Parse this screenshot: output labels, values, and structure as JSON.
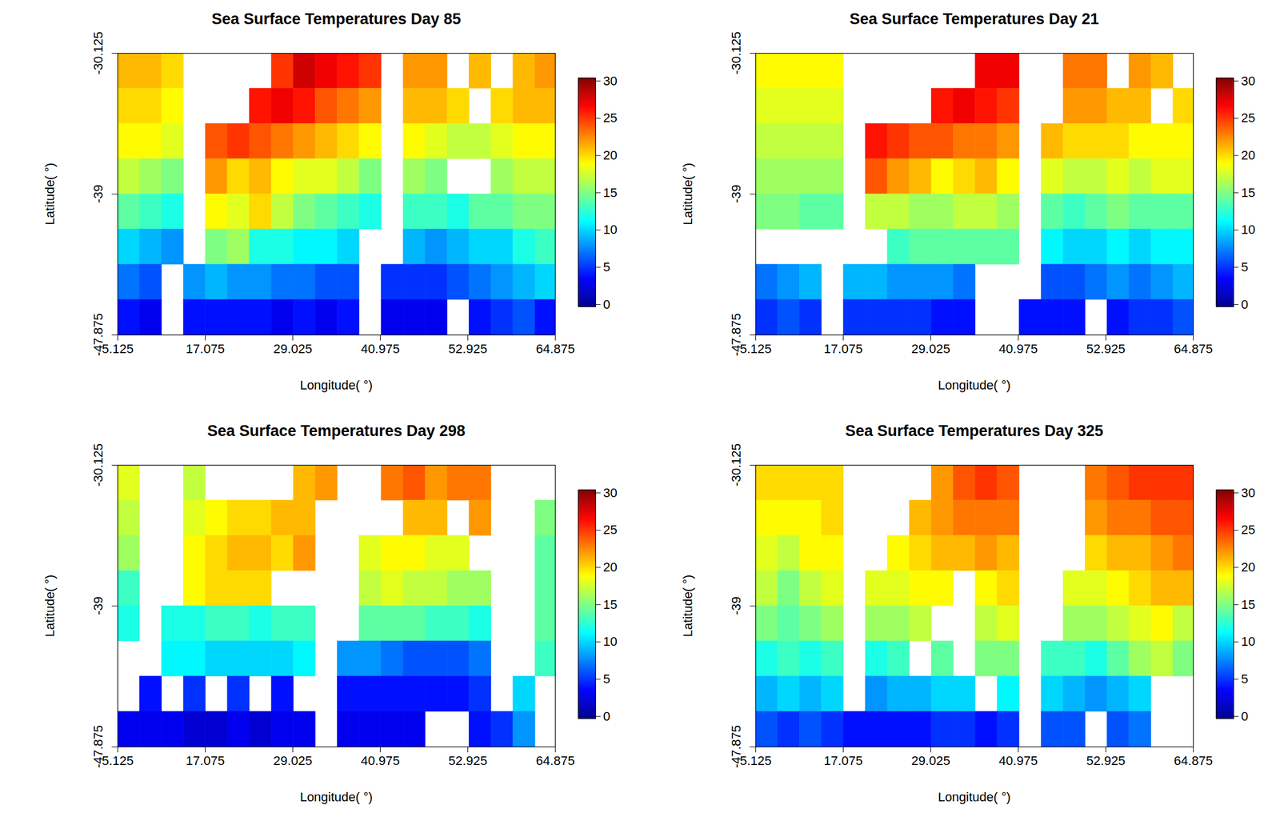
{
  "chart_data": [
    {
      "type": "heatmap",
      "title": "Sea Surface Temperatures Day 85",
      "x_label": "Longitude( °)",
      "y_label": "Latitude( °)",
      "xlim": [
        5.125,
        64.875
      ],
      "ylim": [
        -47.875,
        -30.125
      ],
      "xticks": [
        5.125,
        17.075,
        29.025,
        40.975,
        52.925,
        64.875
      ],
      "yticks": [
        -47.875,
        -39,
        -30.125
      ],
      "x": [
        6.625,
        9.625,
        12.625,
        15.625,
        18.625,
        21.625,
        24.625,
        27.625,
        30.625,
        33.625,
        36.625,
        39.625,
        42.625,
        45.625,
        48.625,
        51.625,
        54.625,
        57.625,
        60.625,
        63.625
      ],
      "y": [
        -31.234,
        -33.453,
        -35.672,
        -37.891,
        -40.109,
        -42.328,
        -44.547,
        -46.766
      ],
      "z": [
        [
          21,
          21,
          20,
          null,
          null,
          null,
          null,
          25,
          28,
          27,
          26,
          25,
          null,
          22,
          22,
          null,
          21,
          null,
          21,
          22
        ],
        [
          20,
          20,
          19,
          null,
          null,
          null,
          26,
          27,
          26,
          24,
          23,
          22,
          null,
          21,
          21,
          20,
          null,
          20,
          21,
          21
        ],
        [
          19,
          19,
          18,
          null,
          24,
          25,
          24,
          23,
          22,
          21,
          20,
          19,
          null,
          19,
          18,
          17,
          17,
          18,
          19,
          19
        ],
        [
          17,
          16,
          15,
          null,
          22,
          20,
          21,
          19,
          18,
          18,
          17,
          15,
          null,
          16,
          15,
          null,
          null,
          16,
          17,
          17
        ],
        [
          14,
          13,
          12,
          null,
          19,
          18,
          20,
          17,
          15,
          14,
          13,
          12,
          null,
          13,
          13,
          12,
          14,
          14,
          15,
          15
        ],
        [
          10,
          9,
          8,
          null,
          15,
          16,
          12,
          12,
          11,
          11,
          10,
          null,
          null,
          9,
          8,
          9,
          10,
          10,
          12,
          13
        ],
        [
          7,
          6,
          null,
          8,
          9,
          8,
          8,
          7,
          7,
          6,
          6,
          null,
          5,
          5,
          5,
          6,
          7,
          8,
          9,
          10
        ],
        [
          4,
          3,
          null,
          4,
          4,
          4,
          4,
          3,
          4,
          3,
          4,
          null,
          3,
          3,
          3,
          null,
          4,
          5,
          6,
          4
        ]
      ],
      "colorbar_range": [
        -0.3,
        30.4
      ],
      "colorbar_ticks": [
        0,
        5,
        10,
        15,
        20,
        25,
        30
      ]
    },
    {
      "type": "heatmap",
      "title": "Sea Surface Temperatures Day 21",
      "x_label": "Longitude( °)",
      "y_label": "Latitude( °)",
      "xlim": [
        5.125,
        64.875
      ],
      "ylim": [
        -47.875,
        -30.125
      ],
      "xticks": [
        5.125,
        17.075,
        29.025,
        40.975,
        52.925,
        64.875
      ],
      "yticks": [
        -47.875,
        -39,
        -30.125
      ],
      "x": [
        6.625,
        9.625,
        12.625,
        15.625,
        18.625,
        21.625,
        24.625,
        27.625,
        30.625,
        33.625,
        36.625,
        39.625,
        42.625,
        45.625,
        48.625,
        51.625,
        54.625,
        57.625,
        60.625,
        63.625
      ],
      "y": [
        -31.234,
        -33.453,
        -35.672,
        -37.891,
        -40.109,
        -42.328,
        -44.547,
        -46.766
      ],
      "z": [
        [
          19,
          19,
          19,
          19,
          null,
          null,
          null,
          null,
          null,
          null,
          27,
          27,
          null,
          null,
          23,
          23,
          null,
          22,
          21,
          null
        ],
        [
          18,
          18,
          18,
          18,
          null,
          null,
          null,
          null,
          26,
          27,
          26,
          25,
          null,
          null,
          22,
          22,
          21,
          21,
          null,
          20
        ],
        [
          17,
          17,
          17,
          17,
          null,
          26,
          25,
          24,
          24,
          23,
          23,
          22,
          null,
          21,
          20,
          20,
          20,
          19,
          19,
          19
        ],
        [
          16,
          16,
          16,
          16,
          null,
          24,
          22,
          21,
          19,
          20,
          21,
          19,
          null,
          18,
          17,
          17,
          18,
          17,
          18,
          18
        ],
        [
          15,
          15,
          14,
          14,
          null,
          17,
          17,
          16,
          16,
          17,
          17,
          16,
          null,
          14,
          13,
          14,
          15,
          14,
          14,
          14
        ],
        [
          null,
          null,
          null,
          null,
          null,
          null,
          13,
          14,
          14,
          14,
          14,
          14,
          null,
          11,
          10,
          10,
          11,
          10,
          11,
          11
        ],
        [
          7,
          8,
          9,
          null,
          9,
          9,
          8,
          8,
          8,
          7,
          null,
          null,
          null,
          6,
          6,
          7,
          8,
          7,
          8,
          9
        ],
        [
          5,
          6,
          5,
          null,
          5,
          5,
          5,
          5,
          4,
          4,
          null,
          null,
          4,
          4,
          4,
          null,
          4,
          5,
          5,
          6
        ]
      ],
      "colorbar_range": [
        -0.3,
        30.4
      ],
      "colorbar_ticks": [
        0,
        5,
        10,
        15,
        20,
        25,
        30
      ]
    },
    {
      "type": "heatmap",
      "title": "Sea Surface Temperatures Day 298",
      "x_label": "Longitude( °)",
      "y_label": "Latitude( °)",
      "xlim": [
        5.125,
        64.875
      ],
      "ylim": [
        -47.875,
        -30.125
      ],
      "xticks": [
        5.125,
        17.075,
        29.025,
        40.975,
        52.925,
        64.875
      ],
      "yticks": [
        -47.875,
        -39,
        -30.125
      ],
      "x": [
        6.625,
        9.625,
        12.625,
        15.625,
        18.625,
        21.625,
        24.625,
        27.625,
        30.625,
        33.625,
        36.625,
        39.625,
        42.625,
        45.625,
        48.625,
        51.625,
        54.625,
        57.625,
        60.625,
        63.625
      ],
      "y": [
        -31.234,
        -33.453,
        -35.672,
        -37.891,
        -40.109,
        -42.328,
        -44.547,
        -46.766
      ],
      "z": [
        [
          18,
          null,
          null,
          17,
          null,
          null,
          null,
          null,
          21,
          22,
          null,
          null,
          23,
          24,
          22,
          23,
          23,
          null,
          null,
          null
        ],
        [
          17,
          null,
          null,
          18,
          19,
          20,
          20,
          21,
          21,
          null,
          null,
          null,
          null,
          21,
          21,
          null,
          22,
          null,
          null,
          15
        ],
        [
          16,
          null,
          null,
          19,
          20,
          21,
          21,
          20,
          22,
          null,
          null,
          18,
          19,
          19,
          18,
          18,
          null,
          null,
          null,
          14
        ],
        [
          13,
          null,
          null,
          19,
          20,
          20,
          20,
          null,
          null,
          null,
          null,
          17,
          18,
          17,
          17,
          16,
          16,
          null,
          null,
          14
        ],
        [
          12,
          null,
          12,
          12,
          13,
          13,
          12,
          13,
          13,
          null,
          null,
          14,
          14,
          14,
          13,
          13,
          12,
          null,
          null,
          14
        ],
        [
          null,
          null,
          11,
          11,
          10,
          10,
          10,
          10,
          11,
          null,
          8,
          8,
          7,
          6,
          6,
          6,
          7,
          null,
          null,
          13
        ],
        [
          null,
          4,
          null,
          5,
          null,
          5,
          null,
          4,
          null,
          null,
          4,
          4,
          4,
          4,
          4,
          4,
          5,
          null,
          10,
          null
        ],
        [
          3,
          3,
          3,
          2,
          2,
          3,
          2,
          3,
          3,
          null,
          3,
          3,
          3,
          3,
          null,
          null,
          4,
          5,
          8,
          null
        ]
      ],
      "colorbar_range": [
        -0.3,
        30.4
      ],
      "colorbar_ticks": [
        0,
        5,
        10,
        15,
        20,
        25,
        30
      ]
    },
    {
      "type": "heatmap",
      "title": "Sea Surface Temperatures Day 325",
      "x_label": "Longitude( °)",
      "y_label": "Latitude( °)",
      "xlim": [
        5.125,
        64.875
      ],
      "ylim": [
        -47.875,
        -30.125
      ],
      "xticks": [
        5.125,
        17.075,
        29.025,
        40.975,
        52.925,
        64.875
      ],
      "yticks": [
        -47.875,
        -39,
        -30.125
      ],
      "x": [
        6.625,
        9.625,
        12.625,
        15.625,
        18.625,
        21.625,
        24.625,
        27.625,
        30.625,
        33.625,
        36.625,
        39.625,
        42.625,
        45.625,
        48.625,
        51.625,
        54.625,
        57.625,
        60.625,
        63.625
      ],
      "y": [
        -31.234,
        -33.453,
        -35.672,
        -37.891,
        -40.109,
        -42.328,
        -44.547,
        -46.766
      ],
      "z": [
        [
          20,
          20,
          20,
          20,
          null,
          null,
          null,
          null,
          22,
          24,
          25,
          24,
          null,
          null,
          null,
          23,
          24,
          25,
          25,
          25
        ],
        [
          19,
          19,
          19,
          20,
          null,
          null,
          null,
          21,
          22,
          23,
          23,
          23,
          null,
          null,
          null,
          22,
          23,
          23,
          24,
          24
        ],
        [
          18,
          17,
          19,
          19,
          null,
          null,
          19,
          20,
          21,
          21,
          22,
          21,
          null,
          null,
          null,
          20,
          21,
          21,
          22,
          23
        ],
        [
          17,
          15,
          17,
          18,
          null,
          18,
          18,
          19,
          19,
          null,
          19,
          20,
          null,
          null,
          18,
          18,
          19,
          20,
          21,
          21
        ],
        [
          15,
          14,
          15,
          16,
          null,
          16,
          16,
          17,
          null,
          null,
          17,
          18,
          null,
          null,
          16,
          16,
          17,
          18,
          19,
          17
        ],
        [
          12,
          13,
          12,
          13,
          null,
          12,
          13,
          null,
          14,
          null,
          15,
          15,
          null,
          13,
          13,
          12,
          14,
          16,
          17,
          15
        ],
        [
          9,
          10,
          9,
          10,
          null,
          8,
          9,
          9,
          10,
          10,
          null,
          11,
          null,
          10,
          9,
          8,
          9,
          10,
          null,
          null
        ],
        [
          6,
          5,
          6,
          5,
          4,
          4,
          4,
          4,
          5,
          5,
          4,
          5,
          null,
          6,
          6,
          null,
          6,
          7,
          null,
          null
        ]
      ],
      "colorbar_range": [
        -0.3,
        30.4
      ],
      "colorbar_ticks": [
        0,
        5,
        10,
        15,
        20,
        25,
        30
      ]
    }
  ]
}
